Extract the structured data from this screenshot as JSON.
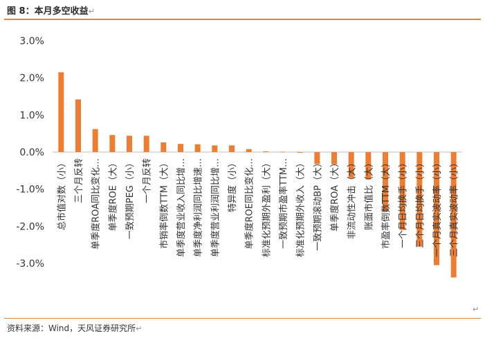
{
  "figure": {
    "title": "图 8：本月多空收益",
    "source": "资料来源：Wind，天风证券研究所",
    "return_mark": "↵"
  },
  "chart_data": {
    "type": "bar",
    "ylim": [
      -3.0,
      3.0
    ],
    "yticks": [
      3.0,
      2.0,
      1.0,
      0.0,
      -1.0,
      -2.0,
      -3.0
    ],
    "ytick_labels": [
      "3.0%",
      "2.0%",
      "1.0%",
      "0.0%",
      "-1.0%",
      "-2.0%",
      "-3.0%"
    ],
    "bar_color": "#ed7d31",
    "categories": [
      "总市值对数（小）",
      "三个月反转",
      "单季度ROA同比变化…",
      "单季度ROE（大）",
      "一致预期PEG（小）",
      "一个月反转",
      "市销率倒数TTM（大）",
      "单季度营业收入同比增…",
      "单季度净利润同比增速…",
      "单季度营业利润同比增…",
      "特异度（小）",
      "单季度ROE同比变化…",
      "标准化预期外盈利（大）",
      "一致预期市盈率TTM…",
      "标准化预期外收入（大）",
      "一致预期滚动BP（大）",
      "单季度ROA（大）",
      "非流动性冲击（大）",
      "账面市值比（大）",
      "市盈率倒数TTM（大）",
      "一个月日均换手（小）",
      "三个月日均换手（小）",
      "一个月真实波动率（小）",
      "三个月真实波动率（小）"
    ],
    "values": [
      2.15,
      1.42,
      0.62,
      0.46,
      0.44,
      0.44,
      0.26,
      0.22,
      0.21,
      0.18,
      0.18,
      0.08,
      0.02,
      0.01,
      -0.02,
      -0.32,
      -0.33,
      -0.7,
      -0.74,
      -1.6,
      -2.1,
      -2.55,
      -3.05,
      -3.38
    ]
  }
}
